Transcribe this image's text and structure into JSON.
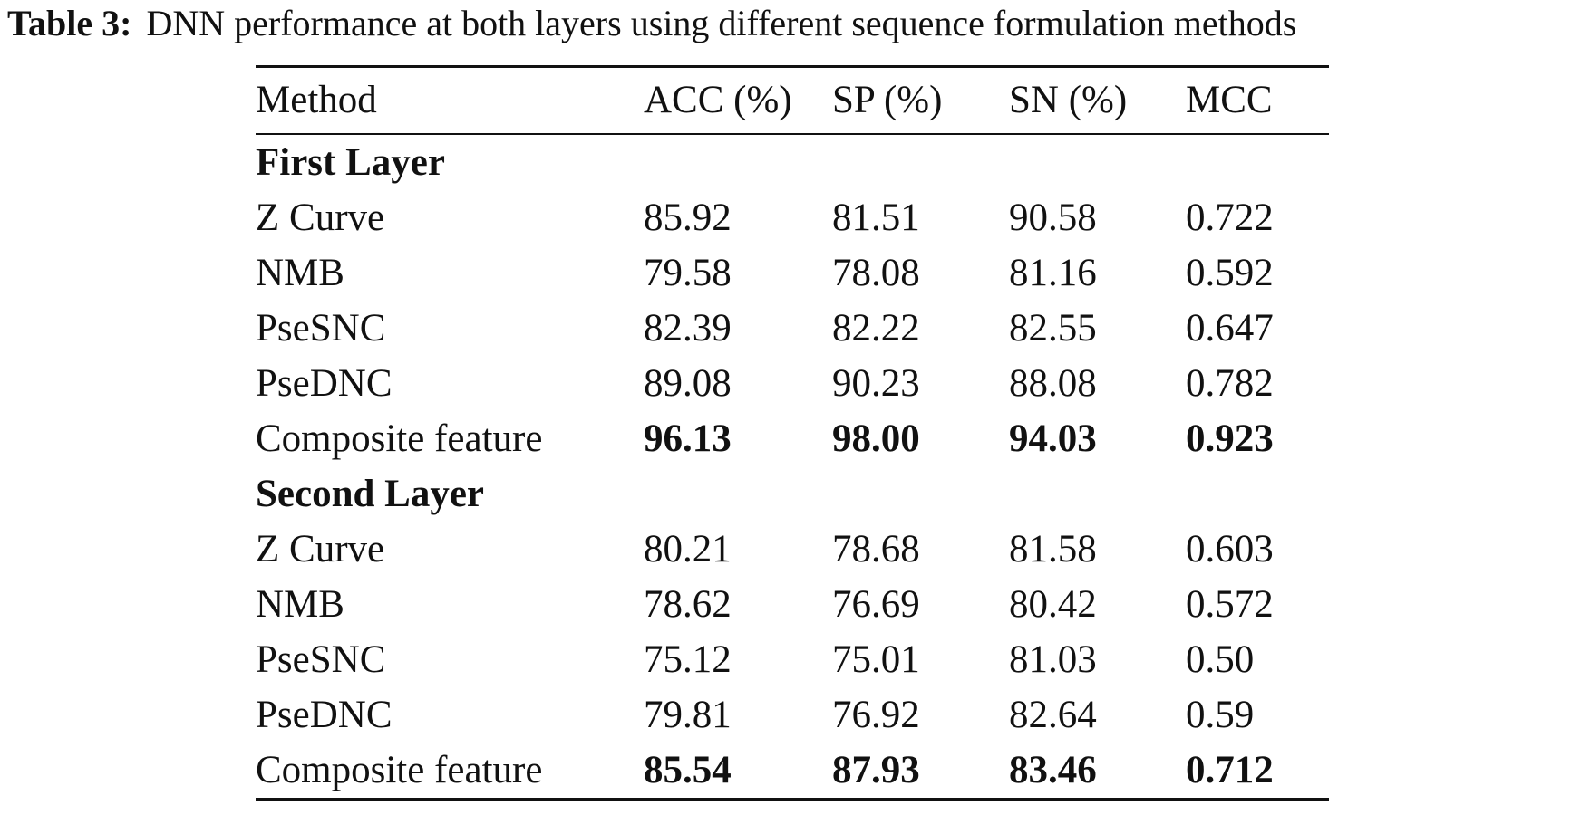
{
  "caption": {
    "label": "Table 3:",
    "text": "DNN performance at both layers using different sequence formulation methods"
  },
  "table": {
    "headers": [
      "Method",
      "ACC (%)",
      "SP (%)",
      "SN (%)",
      "MCC"
    ],
    "sections": [
      {
        "title": "First Layer",
        "rows": [
          {
            "method": "Z Curve",
            "acc": "85.92",
            "sp": "81.51",
            "sn": "90.58",
            "mcc": "0.722"
          },
          {
            "method": "NMB",
            "acc": "79.58",
            "sp": "78.08",
            "sn": "81.16",
            "mcc": "0.592"
          },
          {
            "method": "PseSNC",
            "acc": "82.39",
            "sp": "82.22",
            "sn": "82.55",
            "mcc": "0.647"
          },
          {
            "method": "PseDNC",
            "acc": "89.08",
            "sp": "90.23",
            "sn": "88.08",
            "mcc": "0.782"
          },
          {
            "method": "Composite feature",
            "acc": "96.13",
            "sp": "98.00",
            "sn": "94.03",
            "mcc": "0.923"
          }
        ]
      },
      {
        "title": "Second Layer",
        "rows": [
          {
            "method": "Z Curve",
            "acc": "80.21",
            "sp": "78.68",
            "sn": "81.58",
            "mcc": "0.603"
          },
          {
            "method": "NMB",
            "acc": "78.62",
            "sp": "76.69",
            "sn": "80.42",
            "mcc": "0.572"
          },
          {
            "method": "PseSNC",
            "acc": "75.12",
            "sp": "75.01",
            "sn": "81.03",
            "mcc": "0.50"
          },
          {
            "method": "PseDNC",
            "acc": "79.81",
            "sp": "76.92",
            "sn": "82.64",
            "mcc": "0.59"
          },
          {
            "method": "Composite feature",
            "acc": "85.54",
            "sp": "87.93",
            "sn": "83.46",
            "mcc": "0.712"
          }
        ]
      }
    ]
  }
}
